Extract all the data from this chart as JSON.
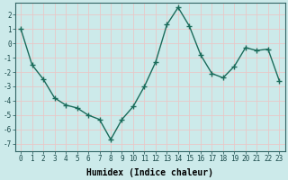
{
  "x": [
    0,
    1,
    2,
    3,
    4,
    5,
    6,
    7,
    8,
    9,
    10,
    11,
    12,
    13,
    14,
    15,
    16,
    17,
    18,
    19,
    20,
    21,
    22,
    23
  ],
  "y": [
    1.0,
    -1.5,
    -2.5,
    -3.8,
    -4.3,
    -4.5,
    -5.0,
    -5.3,
    -6.7,
    -5.3,
    -4.4,
    -3.0,
    -1.3,
    1.3,
    2.5,
    1.2,
    -0.8,
    -2.1,
    -2.4,
    -1.6,
    -0.3,
    -0.5,
    -0.4,
    -2.6
  ],
  "line_color": "#1a6b5a",
  "marker": "+",
  "marker_size": 4,
  "marker_linewidth": 1.0,
  "xlabel": "Humidex (Indice chaleur)",
  "ylim": [
    -7.5,
    2.8
  ],
  "xlim": [
    -0.5,
    23.5
  ],
  "yticks": [
    -7,
    -6,
    -5,
    -4,
    -3,
    -2,
    -1,
    0,
    1,
    2
  ],
  "xticks": [
    0,
    1,
    2,
    3,
    4,
    5,
    6,
    7,
    8,
    9,
    10,
    11,
    12,
    13,
    14,
    15,
    16,
    17,
    18,
    19,
    20,
    21,
    22,
    23
  ],
  "bg_color": "#cceaea",
  "grid_color": "#e8c8c8",
  "tick_label_fontsize": 5.5,
  "xlabel_fontsize": 7,
  "line_width": 1.0,
  "fig_width": 3.2,
  "fig_height": 2.0,
  "dpi": 100
}
